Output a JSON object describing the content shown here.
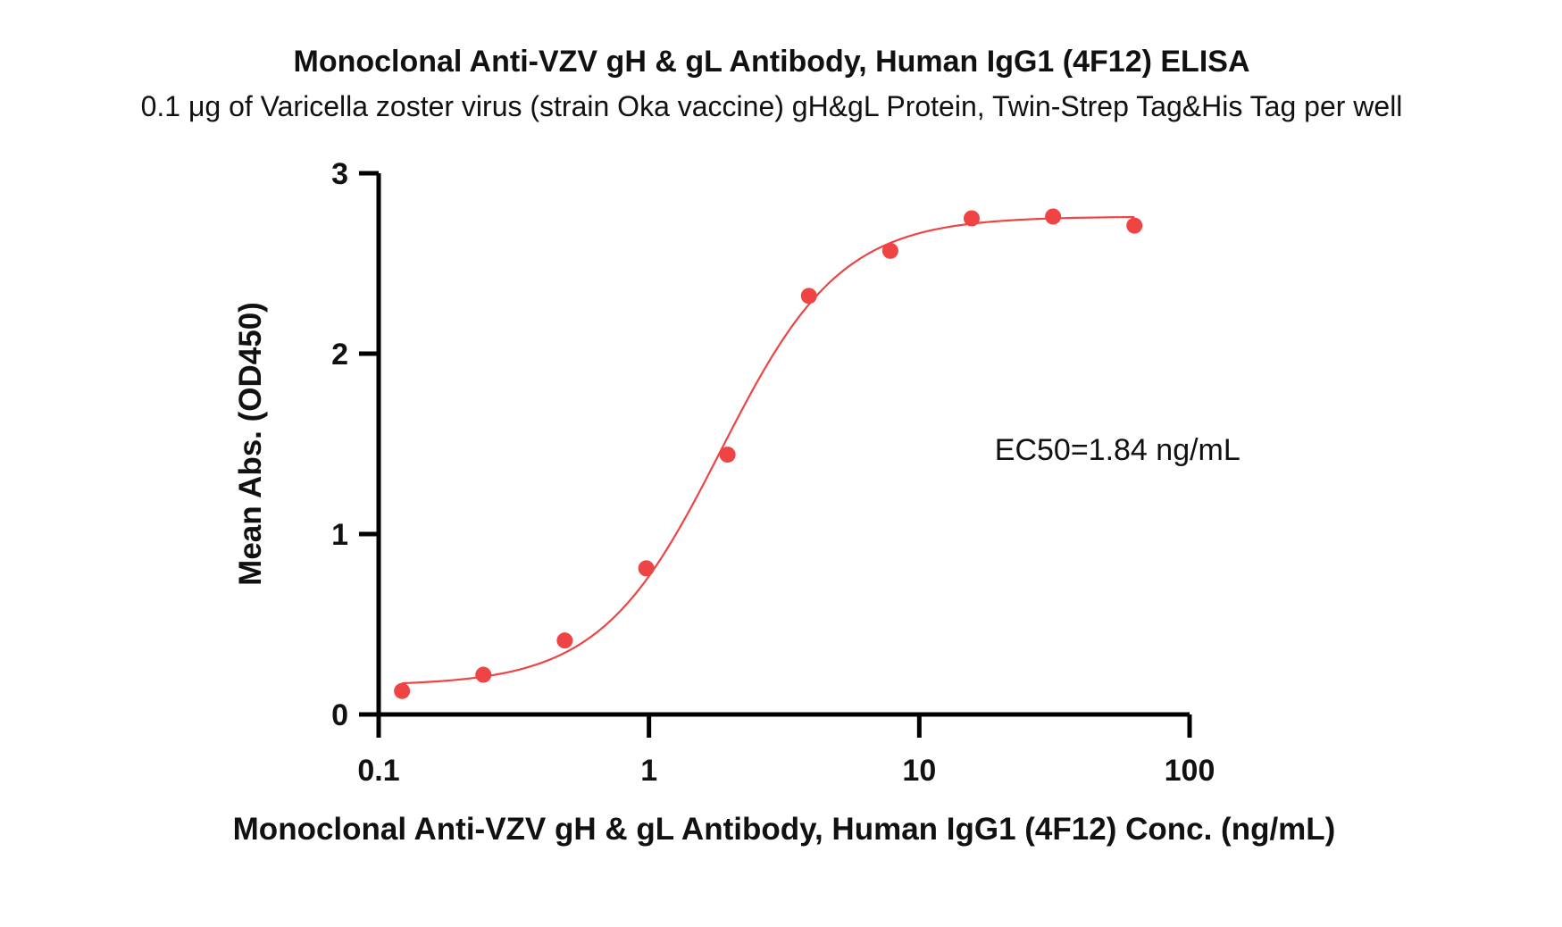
{
  "chart_data": {
    "type": "scatter",
    "title": "Monoclonal Anti-VZV gH & gL Antibody, Human IgG1 (4F12) ELISA",
    "subtitle": "0.1 μg of Varicella zoster virus (strain Oka vaccine) gH&gL Protein, Twin-Strep Tag&His Tag per well",
    "xlabel": "Monoclonal Anti-VZV gH & gL Antibody, Human IgG1 (4F12) Conc. (ng/mL)",
    "ylabel": "Mean Abs. (OD450)",
    "x_scale": "log",
    "xlim": [
      0.1,
      100
    ],
    "ylim": [
      0,
      3
    ],
    "x_ticks": [
      {
        "value": 0.1,
        "label": "0.1"
      },
      {
        "value": 1,
        "label": "1"
      },
      {
        "value": 10,
        "label": "10"
      },
      {
        "value": 100,
        "label": "100"
      }
    ],
    "y_ticks": [
      {
        "value": 0,
        "label": "0"
      },
      {
        "value": 1,
        "label": "1"
      },
      {
        "value": 2,
        "label": "2"
      },
      {
        "value": 3,
        "label": "3"
      }
    ],
    "grid": false,
    "series": [
      {
        "color": "#EE4444",
        "points": [
          {
            "x": 0.122,
            "y": 0.13
          },
          {
            "x": 0.244,
            "y": 0.22
          },
          {
            "x": 0.488,
            "y": 0.41
          },
          {
            "x": 0.977,
            "y": 0.81
          },
          {
            "x": 1.953,
            "y": 1.44
          },
          {
            "x": 3.906,
            "y": 2.32
          },
          {
            "x": 7.813,
            "y": 2.57
          },
          {
            "x": 15.625,
            "y": 2.75
          },
          {
            "x": 31.25,
            "y": 2.76
          },
          {
            "x": 62.5,
            "y": 2.71
          }
        ],
        "fit": {
          "model": "4PL",
          "bottom": 0.16,
          "top": 2.76,
          "ec50": 1.84,
          "hill": 1.95,
          "x_range": [
            0.122,
            62.5
          ]
        }
      }
    ],
    "annotations": [
      {
        "text": "EC50=1.84 ng/mL",
        "x": 25,
        "y": 1.47
      }
    ]
  }
}
